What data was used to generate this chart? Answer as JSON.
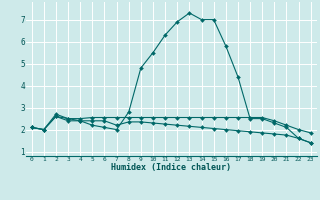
{
  "xlabel": "Humidex (Indice chaleur)",
  "background_color": "#ceeaea",
  "grid_color": "#ffffff",
  "line_color": "#006868",
  "xlim": [
    -0.5,
    23.5
  ],
  "ylim": [
    0.8,
    7.8
  ],
  "xticks": [
    0,
    1,
    2,
    3,
    4,
    5,
    6,
    7,
    8,
    9,
    10,
    11,
    12,
    13,
    14,
    15,
    16,
    17,
    18,
    19,
    20,
    21,
    22,
    23
  ],
  "yticks": [
    1,
    2,
    3,
    4,
    5,
    6,
    7
  ],
  "series": [
    {
      "x": [
        0,
        1,
        2,
        3,
        4,
        5,
        6,
        7,
        8,
        9,
        10,
        11,
        12,
        13,
        14,
        15,
        16,
        17,
        18,
        19,
        20,
        21,
        22,
        23
      ],
      "y": [
        2.1,
        2.0,
        2.6,
        2.4,
        2.4,
        2.2,
        2.1,
        2.0,
        2.8,
        4.8,
        5.5,
        6.3,
        6.9,
        7.3,
        7.0,
        7.0,
        5.8,
        4.4,
        2.5,
        2.5,
        2.3,
        2.1,
        1.6,
        1.4
      ],
      "marker": "D",
      "markersize": 2.0
    },
    {
      "x": [
        0,
        1,
        2,
        3,
        4,
        5,
        6,
        7,
        8,
        9,
        10,
        11,
        12,
        13,
        14,
        15,
        16,
        17,
        18,
        19,
        20,
        21,
        22,
        23
      ],
      "y": [
        2.1,
        2.0,
        2.7,
        2.5,
        2.5,
        2.55,
        2.55,
        2.55,
        2.55,
        2.55,
        2.55,
        2.55,
        2.55,
        2.55,
        2.55,
        2.55,
        2.55,
        2.55,
        2.55,
        2.55,
        2.4,
        2.2,
        2.0,
        1.85
      ],
      "marker": "D",
      "markersize": 2.0
    },
    {
      "x": [
        0,
        1,
        2,
        3,
        4,
        5,
        6,
        7,
        8,
        9,
        10,
        11,
        12,
        13,
        14,
        15,
        16,
        17,
        18,
        19,
        20,
        21,
        22,
        23
      ],
      "y": [
        2.1,
        2.0,
        2.6,
        2.5,
        2.4,
        2.4,
        2.4,
        2.2,
        2.35,
        2.35,
        2.3,
        2.25,
        2.2,
        2.15,
        2.1,
        2.05,
        2.0,
        1.95,
        1.9,
        1.85,
        1.8,
        1.75,
        1.6,
        1.4
      ],
      "marker": "D",
      "markersize": 2.0
    }
  ]
}
